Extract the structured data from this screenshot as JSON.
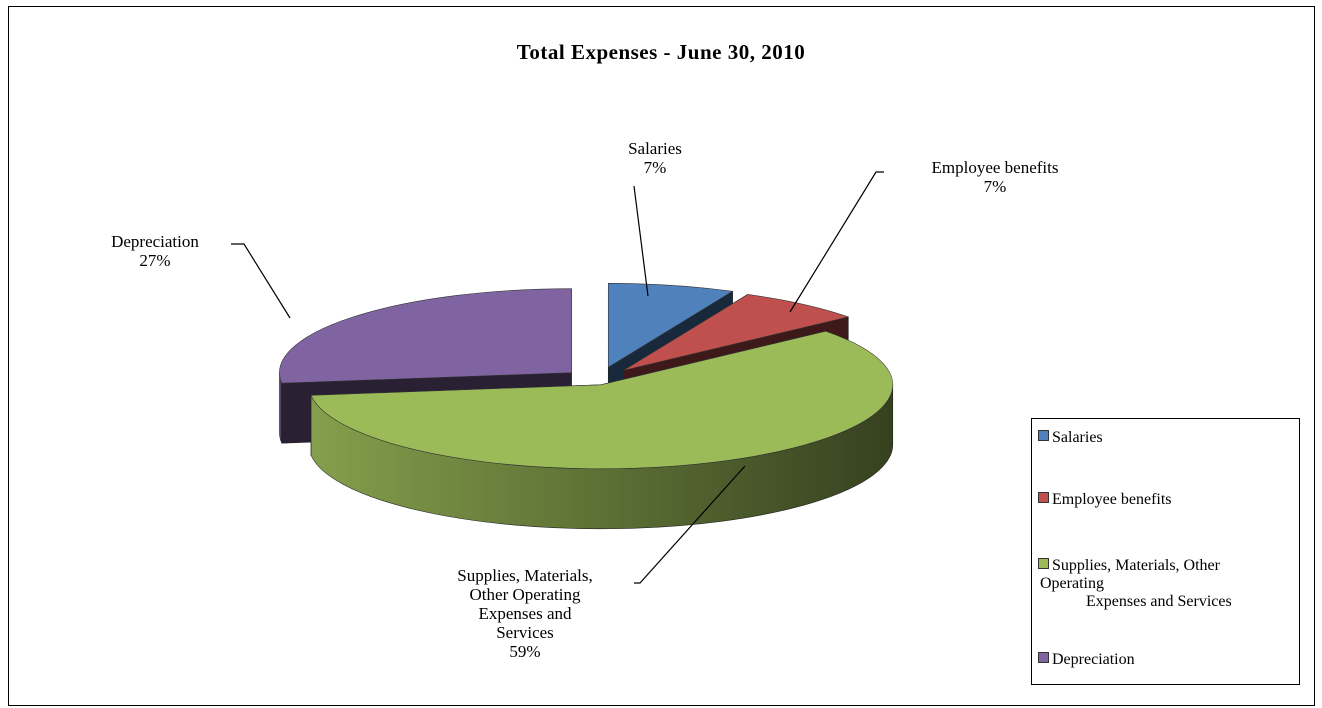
{
  "chart_data": {
    "type": "pie",
    "title": "Total Expenses - June 30, 2010",
    "slices": [
      {
        "name": "Salaries",
        "label_lines": [
          "Salaries",
          "7%"
        ],
        "value": 7,
        "color": "#4F81BD"
      },
      {
        "name": "Employee benefits",
        "label_lines": [
          "Employee benefits",
          "7%"
        ],
        "value": 7,
        "color": "#C0504D"
      },
      {
        "name": "Supplies, Materials, Other Operating Expenses and Services",
        "label_lines": [
          "Supplies, Materials,",
          "Other Operating",
          "Expenses and",
          "Services",
          "59%"
        ],
        "value": 59,
        "color": "#9BBB59"
      },
      {
        "name": "Depreciation",
        "label_lines": [
          "Depreciation",
          "27%"
        ],
        "value": 27,
        "color": "#8064A2"
      }
    ],
    "legend": {
      "position": "right",
      "items": [
        {
          "lines": [
            "Salaries"
          ],
          "color": "#4F81BD"
        },
        {
          "lines": [
            "Employee benefits"
          ],
          "color": "#C0504D"
        },
        {
          "lines": [
            "Supplies, Materials, Other",
            "Operating",
            "Expenses and Services"
          ],
          "color": "#9BBB59"
        },
        {
          "lines": [
            "Depreciation"
          ],
          "color": "#8064A2"
        }
      ]
    }
  }
}
